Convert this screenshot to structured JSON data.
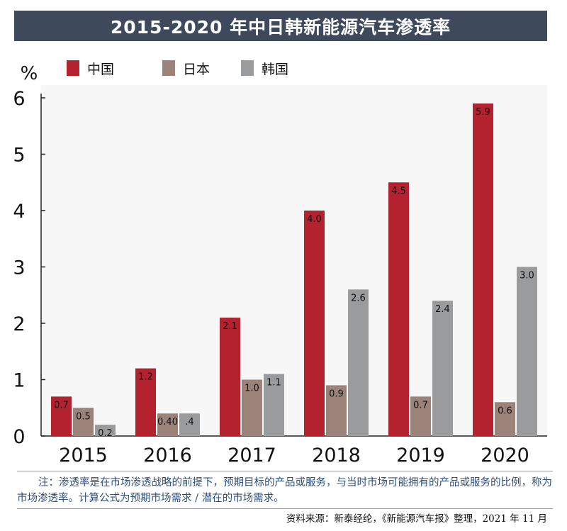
{
  "chart_data": {
    "type": "bar",
    "title": "2015-2020 年中日韩新能源汽车渗透率",
    "ylabel": "%",
    "xlabel": "",
    "ylim": [
      0,
      6
    ],
    "yticks": [
      "0",
      "1",
      "2",
      "3",
      "4",
      "5",
      "6"
    ],
    "categories": [
      "2015",
      "2016",
      "2017",
      "2018",
      "2019",
      "2020"
    ],
    "series": [
      {
        "name": "中国",
        "color": "#b5222f",
        "values": [
          0.7,
          1.2,
          2.1,
          4.0,
          4.5,
          5.9
        ],
        "labels": [
          "0.7",
          "1.2",
          "2.1",
          "4.0",
          "4.5",
          "5.9"
        ]
      },
      {
        "name": "日本",
        "color": "#9b8379",
        "values": [
          0.5,
          0.4,
          1.0,
          0.9,
          0.7,
          0.6
        ],
        "labels": [
          "0.5",
          "0.40",
          "1.0",
          "0.9",
          "0.7",
          "0.6"
        ]
      },
      {
        "name": "韩国",
        "color": "#9a9b9d",
        "values": [
          0.2,
          0.4,
          1.1,
          2.6,
          2.4,
          3.0
        ],
        "labels": [
          "0.2",
          ".4",
          "1.1",
          "2.6",
          "2.4",
          "3.0"
        ]
      }
    ]
  },
  "note": "注：渗透率是在市场渗透战略的前提下，预期目标的产品或服务，与当时市场可能拥有的产品或服务的比例，称为市场渗透率。计算公式为预期市场需求 / 潜在的市场需求。",
  "source": "资料来源：新泰经纶，《新能源汽车报》整理，2021 年 11 月"
}
